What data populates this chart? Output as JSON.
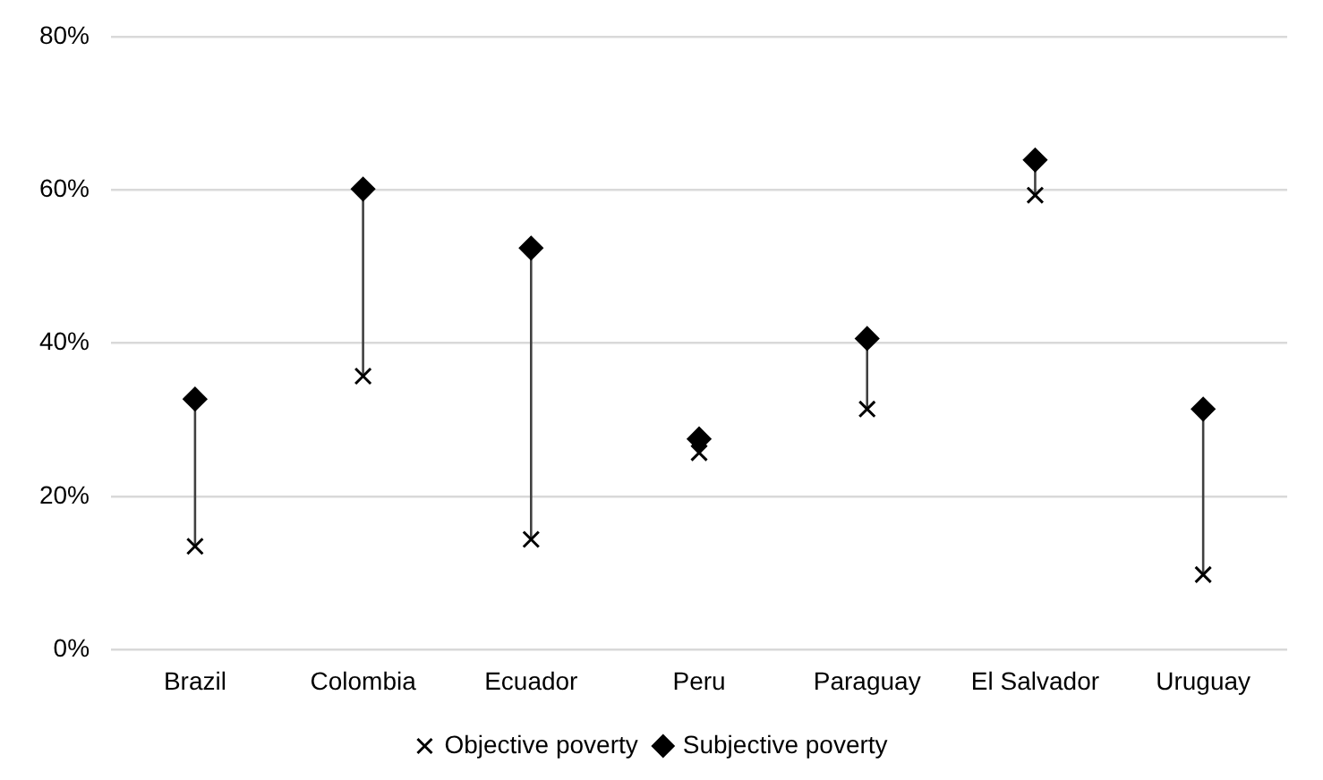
{
  "chart_data": {
    "type": "scatter",
    "categories": [
      "Brazil",
      "Colombia",
      "Ecuador",
      "Peru",
      "Paraguay",
      "El Salvador",
      "Uruguay"
    ],
    "series": [
      {
        "name": "Objective poverty",
        "color": "#000000",
        "marker": "cross",
        "values": [
          13.5,
          35.7,
          14.4,
          25.7,
          31.4,
          59.3,
          9.8
        ]
      },
      {
        "name": "Subjective poverty",
        "color": "#000000",
        "marker": "diamond",
        "values": [
          32.7,
          60.1,
          52.4,
          27.5,
          40.6,
          63.9,
          31.4
        ]
      }
    ],
    "ylim": [
      0,
      80
    ],
    "yticks": [
      {
        "value": 0,
        "label": "0%"
      },
      {
        "value": 20,
        "label": "20%"
      },
      {
        "value": 40,
        "label": "40%"
      },
      {
        "value": 60,
        "label": "60%"
      },
      {
        "value": 80,
        "label": "80%"
      }
    ],
    "grid": "y",
    "legend": "bottom"
  }
}
